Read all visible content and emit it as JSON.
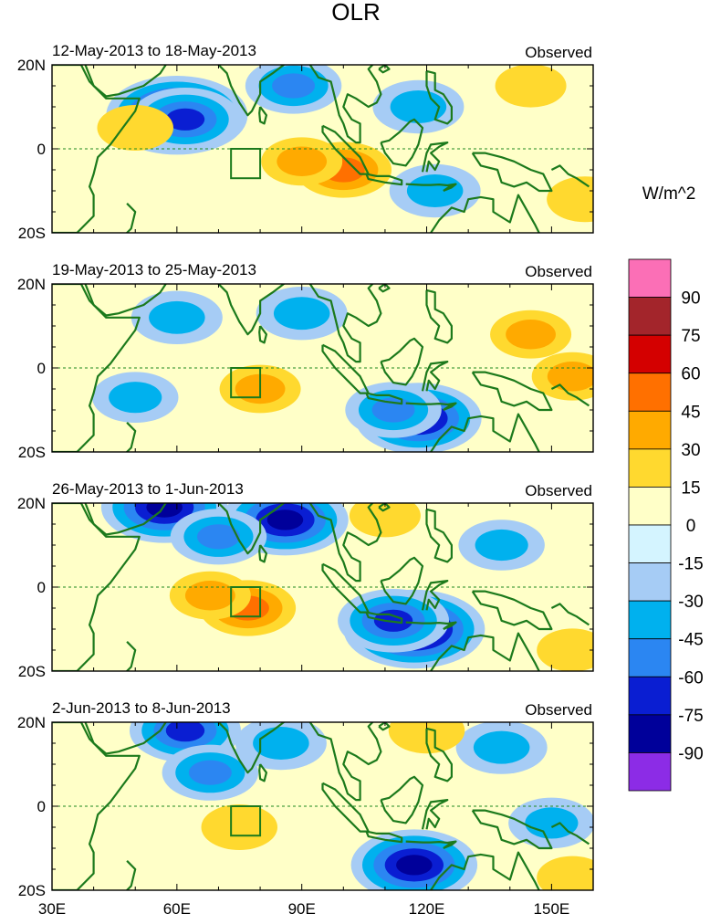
{
  "figure": {
    "title": "OLR",
    "units_label": "W/m^2"
  },
  "panels": [
    {
      "date_range": "12-May-2013 to 18-May-2013",
      "source": "Observed"
    },
    {
      "date_range": "19-May-2013 to 25-May-2013",
      "source": "Observed"
    },
    {
      "date_range": "26-May-2013 to 1-Jun-2013",
      "source": "Observed"
    },
    {
      "date_range": "2-Jun-2013 to 8-Jun-2013",
      "source": "Observed"
    }
  ],
  "axes": {
    "lat_ticks": [
      "20N",
      "0",
      "20S"
    ],
    "lon_ticks": [
      "30E",
      "60E",
      "90E",
      "120E",
      "150E"
    ]
  },
  "colorbar": {
    "labels": [
      "90",
      "75",
      "60",
      "45",
      "30",
      "15",
      "0",
      "-15",
      "-30",
      "-45",
      "-60",
      "-75",
      "-90"
    ],
    "colors": [
      "#fb6fb6",
      "#a3252b",
      "#d40000",
      "#ff7000",
      "#ffaa00",
      "#ffd92f",
      "#ffffc8",
      "#d4f4ff",
      "#a6ccf5",
      "#00b1ee",
      "#2b86f2",
      "#0a1ed2",
      "#00009a",
      "#8c2ce6"
    ]
  },
  "map_colors": {
    "coast": "#1c7a1c",
    "equator": "#1f8a1f"
  },
  "chart_data": {
    "type": "heatmap",
    "title": "OLR",
    "units": "W/m^2",
    "lon_range": [
      30,
      160
    ],
    "lat_range": [
      -20,
      20
    ],
    "box_region": {
      "lon": [
        73,
        80
      ],
      "lat": [
        -7,
        0
      ]
    },
    "levels": [
      -90,
      -75,
      -60,
      -45,
      -30,
      -15,
      0,
      15,
      30,
      45,
      60,
      75,
      90
    ],
    "panels": [
      {
        "label": "12-May-2013 to 18-May-2013",
        "features": [
          {
            "lon": 60,
            "lat": 8,
            "value": -90
          },
          {
            "lon": 62,
            "lat": 7,
            "value": -60
          },
          {
            "lon": 88,
            "lat": 15,
            "value": -45
          },
          {
            "lon": 118,
            "lat": 10,
            "value": -40
          },
          {
            "lon": 122,
            "lat": -10,
            "value": -40
          },
          {
            "lon": 100,
            "lat": -5,
            "value": 45
          },
          {
            "lon": 90,
            "lat": -3,
            "value": 30
          },
          {
            "lon": 50,
            "lat": 5,
            "value": 25
          },
          {
            "lon": 158,
            "lat": -12,
            "value": 25
          },
          {
            "lon": 145,
            "lat": 15,
            "value": 20
          }
        ]
      },
      {
        "label": "19-May-2013 to 25-May-2013",
        "features": [
          {
            "lon": 118,
            "lat": -12,
            "value": -75
          },
          {
            "lon": 112,
            "lat": -10,
            "value": -45
          },
          {
            "lon": 60,
            "lat": 12,
            "value": -40
          },
          {
            "lon": 90,
            "lat": 13,
            "value": -40
          },
          {
            "lon": 50,
            "lat": -7,
            "value": -35
          },
          {
            "lon": 80,
            "lat": -5,
            "value": 30
          },
          {
            "lon": 145,
            "lat": 8,
            "value": 30
          },
          {
            "lon": 155,
            "lat": -2,
            "value": 30
          }
        ]
      },
      {
        "label": "26-May-2013 to 1-Jun-2013",
        "features": [
          {
            "lon": 117,
            "lat": -10,
            "value": -90
          },
          {
            "lon": 112,
            "lat": -8,
            "value": -60
          },
          {
            "lon": 86,
            "lat": 16,
            "value": -75
          },
          {
            "lon": 57,
            "lat": 19,
            "value": -75
          },
          {
            "lon": 70,
            "lat": 12,
            "value": -45
          },
          {
            "lon": 138,
            "lat": 10,
            "value": -35
          },
          {
            "lon": 77,
            "lat": -5,
            "value": 45
          },
          {
            "lon": 68,
            "lat": -2,
            "value": 30
          },
          {
            "lon": 110,
            "lat": 17,
            "value": 20
          },
          {
            "lon": 155,
            "lat": -15,
            "value": 20
          }
        ]
      },
      {
        "label": "2-Jun-2013 to 8-Jun-2013",
        "features": [
          {
            "lon": 117,
            "lat": -14,
            "value": -75
          },
          {
            "lon": 62,
            "lat": 18,
            "value": -60
          },
          {
            "lon": 68,
            "lat": 8,
            "value": -45
          },
          {
            "lon": 138,
            "lat": 14,
            "value": -40
          },
          {
            "lon": 85,
            "lat": 15,
            "value": -40
          },
          {
            "lon": 150,
            "lat": -4,
            "value": -35
          },
          {
            "lon": 120,
            "lat": 18,
            "value": 25
          },
          {
            "lon": 75,
            "lat": -5,
            "value": 25
          },
          {
            "lon": 155,
            "lat": -17,
            "value": 20
          }
        ]
      }
    ]
  }
}
